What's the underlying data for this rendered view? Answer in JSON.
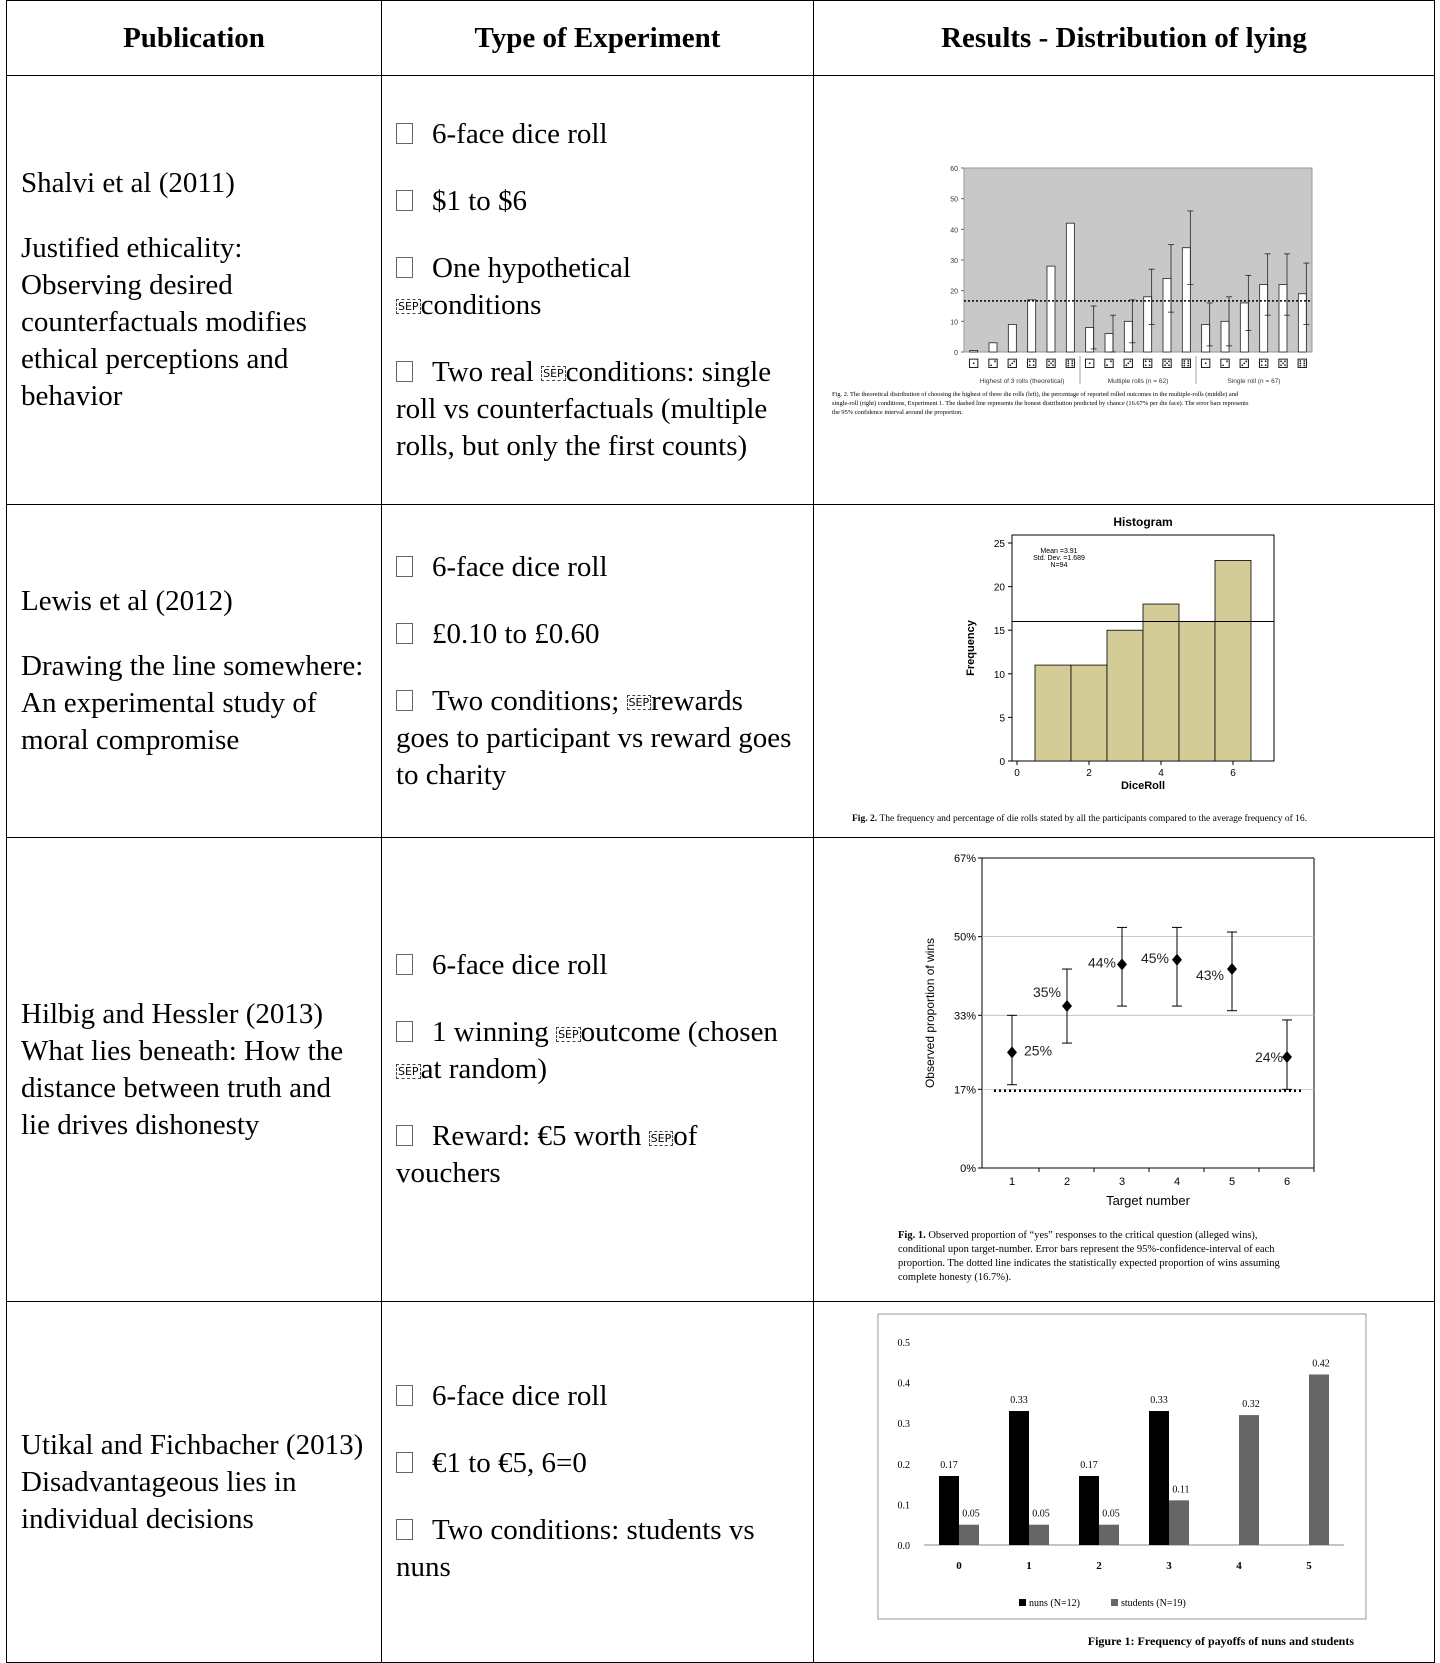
{
  "header": {
    "publication": "Publication",
    "type": "Type of Experiment",
    "results": "Results - Distribution of lying"
  },
  "sep_glyph": "SEP",
  "rows": [
    {
      "pub_lines": [
        "Shalvi et al (2011)",
        "Justified ethicality: Observing desired counterfactuals modifies ethical perceptions and behavior"
      ],
      "items": [
        "6-face dice roll",
        "$1 to $6",
        "One hypothetical",
        "conditions",
        "Two real",
        "conditions: single roll vs counterfactuals (multiple rolls, but only the first counts)"
      ]
    },
    {
      "pub_lines": [
        "Lewis et al (2012)",
        "Drawing the line somewhere: An experimental study of moral compromise"
      ],
      "items": [
        "6-face dice roll",
        "£0.10 to £0.60",
        "Two conditions;",
        "rewards goes to participant vs reward goes to charity"
      ]
    },
    {
      "pub_lines": [
        "Hilbig and Hessler (2013) What lies beneath: How the distance between truth and lie drives dishonesty"
      ],
      "items": [
        "6-face dice roll",
        "1 winning",
        "outcome (chosen",
        "at random)",
        "Reward: €5 worth",
        "of vouchers"
      ]
    },
    {
      "pub_lines": [
        "Utikal and Fichbacher (2013) Disadvantageous lies in individual decisions"
      ],
      "items": [
        "6-face dice roll",
        "€1 to €5, 6=0",
        "Two conditions: students vs nuns"
      ]
    }
  ],
  "chart_data": [
    {
      "type": "bar",
      "yticks": [
        "0",
        "10",
        "20",
        "30",
        "40",
        "50",
        "60"
      ],
      "ylim": [
        0,
        60
      ],
      "groups": [
        "Highest of 3 rolls (theoretical)",
        "Multiple rolls (n = 62)",
        "Single roll (n = 67)"
      ],
      "series": [
        {
          "values": [
            0.5,
            3,
            9,
            17,
            28,
            42
          ]
        },
        {
          "values": [
            8,
            6,
            10,
            18,
            24,
            34
          ],
          "err": [
            7,
            6,
            7,
            9,
            11,
            12
          ]
        },
        {
          "values": [
            9,
            10,
            16,
            22,
            22,
            19
          ],
          "err": [
            7,
            8,
            9,
            10,
            10,
            10
          ]
        }
      ],
      "reference_line": 16.67,
      "caption": "Fig. 2. The theoretical distribution of choosing the highest of three die rolls (left), the percentage of reported rolled outcomes in the multiple-rolls (middle) and single-roll (right) conditions, Experiment 1. The dashed line represents the honest distribution predicted by chance (16.67% per die face). The error bars represents the 95% confidence interval around the proportion."
    },
    {
      "type": "bar",
      "title": "Histogram",
      "stats": [
        "Mean =3.91",
        "Std. Dev. =1.689",
        "N=94"
      ],
      "xlabel": "DiceRoll",
      "ylabel": "Frequency",
      "xticks": [
        "0",
        "2",
        "4",
        "6"
      ],
      "yticks": [
        "0",
        "5",
        "10",
        "15",
        "20",
        "25"
      ],
      "ylim": [
        0,
        25
      ],
      "categories": [
        1,
        2,
        3,
        4,
        5,
        6
      ],
      "values": [
        11,
        11,
        15,
        18,
        16,
        23
      ],
      "reference_line": 16,
      "caption_lead": "Fig. 2.",
      "caption": "The frequency and percentage of die rolls stated by all the participants compared to the average frequency of 16."
    },
    {
      "type": "scatter",
      "xlabel": "Target number",
      "ylabel": "Observed proportion of wins",
      "x": [
        1,
        2,
        3,
        4,
        5,
        6
      ],
      "y": [
        25,
        35,
        44,
        45,
        43,
        24
      ],
      "labels": [
        "25%",
        "35%",
        "44%",
        "45%",
        "43%",
        "24%"
      ],
      "err_low": [
        18,
        27,
        35,
        35,
        34,
        17
      ],
      "err_high": [
        33,
        43,
        52,
        52,
        51,
        32
      ],
      "yticks": [
        "0%",
        "17%",
        "33%",
        "50%",
        "67%"
      ],
      "ytick_values": [
        0,
        17,
        33,
        50,
        67
      ],
      "ylim": [
        0,
        67
      ],
      "reference_line": 16.7,
      "caption_lead": "Fig. 1.",
      "caption": "Observed proportion of “yes” responses to the critical question (alleged wins), conditional upon target-number. Error bars represent the 95%-confidence-interval of each proportion. The dotted line indicates the statistically expected proportion of wins assuming complete honesty (16.7%)."
    },
    {
      "type": "bar",
      "categories": [
        "0",
        "1",
        "2",
        "3",
        "4",
        "5"
      ],
      "yticks": [
        "0.0",
        "0.1",
        "0.2",
        "0.3",
        "0.4",
        "0.5"
      ],
      "ylim": [
        0,
        0.5
      ],
      "series": [
        {
          "name": "nuns (N=12)",
          "values": [
            0.17,
            0.33,
            0.17,
            0.33,
            null,
            null
          ],
          "color": "#000000"
        },
        {
          "name": "students (N=19)",
          "values": [
            0.05,
            0.05,
            0.05,
            0.11,
            0.32,
            0.42
          ],
          "color": "#666666"
        }
      ],
      "caption": "Figure 1: Frequency of payoffs of nuns and students"
    }
  ]
}
